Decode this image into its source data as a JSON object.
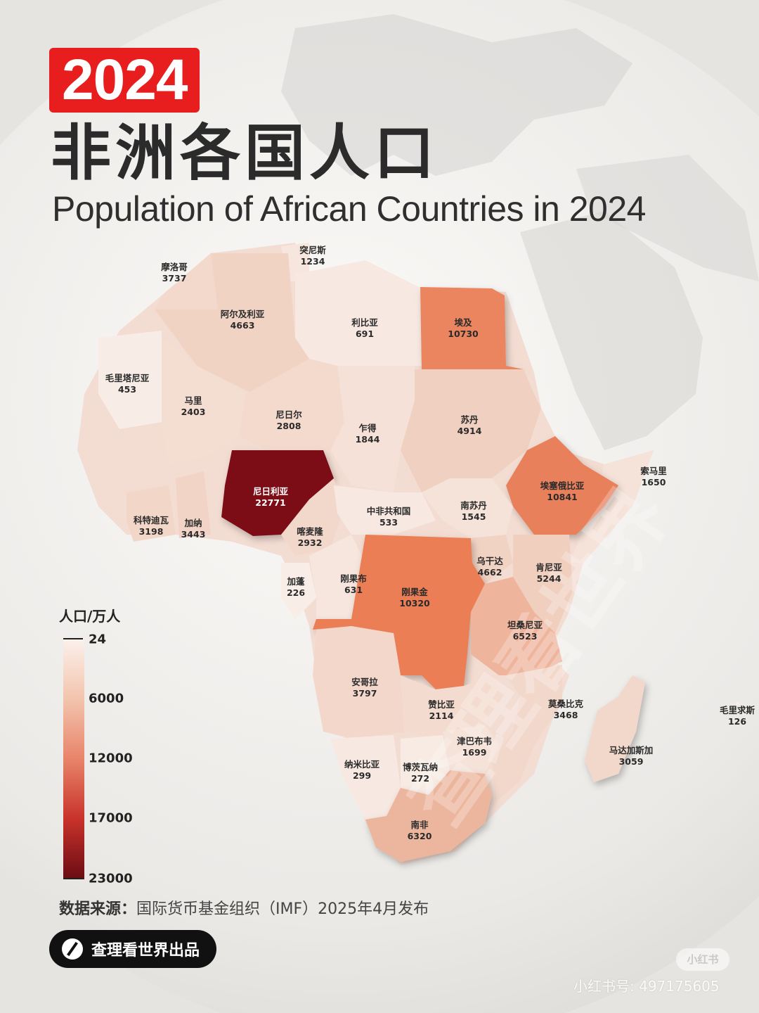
{
  "header": {
    "year": "2024",
    "title_cn": "非洲各国人口",
    "title_en": "Population of African Countries in 2024"
  },
  "countries": [
    {
      "name": "摩洛哥",
      "value": "3737"
    },
    {
      "name": "突尼斯",
      "value": "1234"
    },
    {
      "name": "阿尔及利亚",
      "value": "4663"
    },
    {
      "name": "利比亚",
      "value": "691"
    },
    {
      "name": "埃及",
      "value": "10730"
    },
    {
      "name": "毛里塔尼亚",
      "value": "453"
    },
    {
      "name": "马里",
      "value": "2403"
    },
    {
      "name": "尼日尔",
      "value": "2808"
    },
    {
      "name": "乍得",
      "value": "1844"
    },
    {
      "name": "苏丹",
      "value": "4914"
    },
    {
      "name": "索马里",
      "value": "1650"
    },
    {
      "name": "埃塞俄比亚",
      "value": "10841"
    },
    {
      "name": "尼日利亚",
      "value": "22771"
    },
    {
      "name": "科特迪瓦",
      "value": "3198"
    },
    {
      "name": "加纳",
      "value": "3443"
    },
    {
      "name": "喀麦隆",
      "value": "2932"
    },
    {
      "name": "中非共和国",
      "value": "533"
    },
    {
      "name": "南苏丹",
      "value": "1545"
    },
    {
      "name": "乌干达",
      "value": "4662"
    },
    {
      "name": "肯尼亚",
      "value": "5244"
    },
    {
      "name": "加蓬",
      "value": "226"
    },
    {
      "name": "刚果布",
      "value": "631"
    },
    {
      "name": "刚果金",
      "value": "10320"
    },
    {
      "name": "坦桑尼亚",
      "value": "6523"
    },
    {
      "name": "安哥拉",
      "value": "3797"
    },
    {
      "name": "赞比亚",
      "value": "2114"
    },
    {
      "name": "莫桑比克",
      "value": "3468"
    },
    {
      "name": "毛里求斯",
      "value": "126"
    },
    {
      "name": "津巴布韦",
      "value": "1699"
    },
    {
      "name": "马达加斯加",
      "value": "3059"
    },
    {
      "name": "纳米比亚",
      "value": "299"
    },
    {
      "name": "博茨瓦纳",
      "value": "272"
    },
    {
      "name": "南非",
      "value": "6320"
    }
  ],
  "legend": {
    "title": "人口/万人",
    "ticks": [
      "24",
      "6000",
      "12000",
      "17000",
      "23000"
    ],
    "min": 24,
    "max": 23000
  },
  "footer": {
    "source_label": "数据来源：",
    "source_text": "国际货币基金组织（IMF）2025年4月发布",
    "brand": "查理看世界出品"
  },
  "watermark": {
    "badge": "小红书",
    "id": "小红书号: 497175605"
  },
  "colors": {
    "accent": "#e81d1d",
    "low": "#fbf1ec",
    "high": "#6a0c14"
  }
}
